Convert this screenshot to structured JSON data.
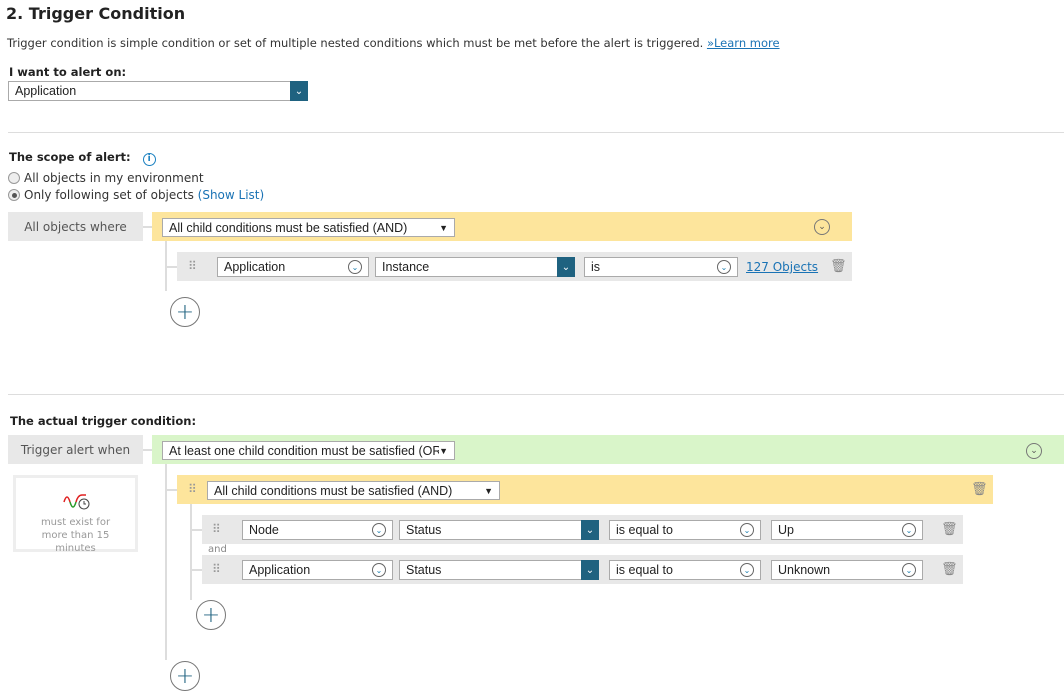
{
  "header": {
    "title": "2. Trigger Condition",
    "description": "Trigger condition is simple condition or set of multiple nested conditions which must be met before the alert is triggered.",
    "learn_more": "»Learn more"
  },
  "alert_on": {
    "label": "I want to alert on:",
    "value": "Application"
  },
  "scope": {
    "label": "The scope of alert:",
    "options": [
      {
        "label": "All objects in my environment",
        "selected": false
      },
      {
        "label": "Only following set of objects",
        "selected": true
      }
    ],
    "show_list": "(Show List)",
    "where_label": "All objects where",
    "group_operator": "All child conditions must be satisfied (AND)",
    "condition": {
      "object": "Application",
      "field": "Instance",
      "operator": "is",
      "value_link": "127 Objects"
    }
  },
  "trigger": {
    "label": "The actual trigger condition:",
    "when_label": "Trigger alert when",
    "group_operator": "At least one child condition must be satisfied (OR)",
    "duration_text": "must exist for more than 15 minutes",
    "subgroup": {
      "operator": "All child conditions must be satisfied (AND)",
      "joiner": "and",
      "conditions": [
        {
          "object": "Node",
          "field": "Status",
          "operator": "is equal to",
          "value": "Up"
        },
        {
          "object": "Application",
          "field": "Status",
          "operator": "is equal to",
          "value": "Unknown"
        }
      ]
    }
  },
  "colors": {
    "accent": "#1f6280",
    "and_group": "#fde59c",
    "or_group": "#d9f5c9",
    "link": "#1a73b5"
  }
}
